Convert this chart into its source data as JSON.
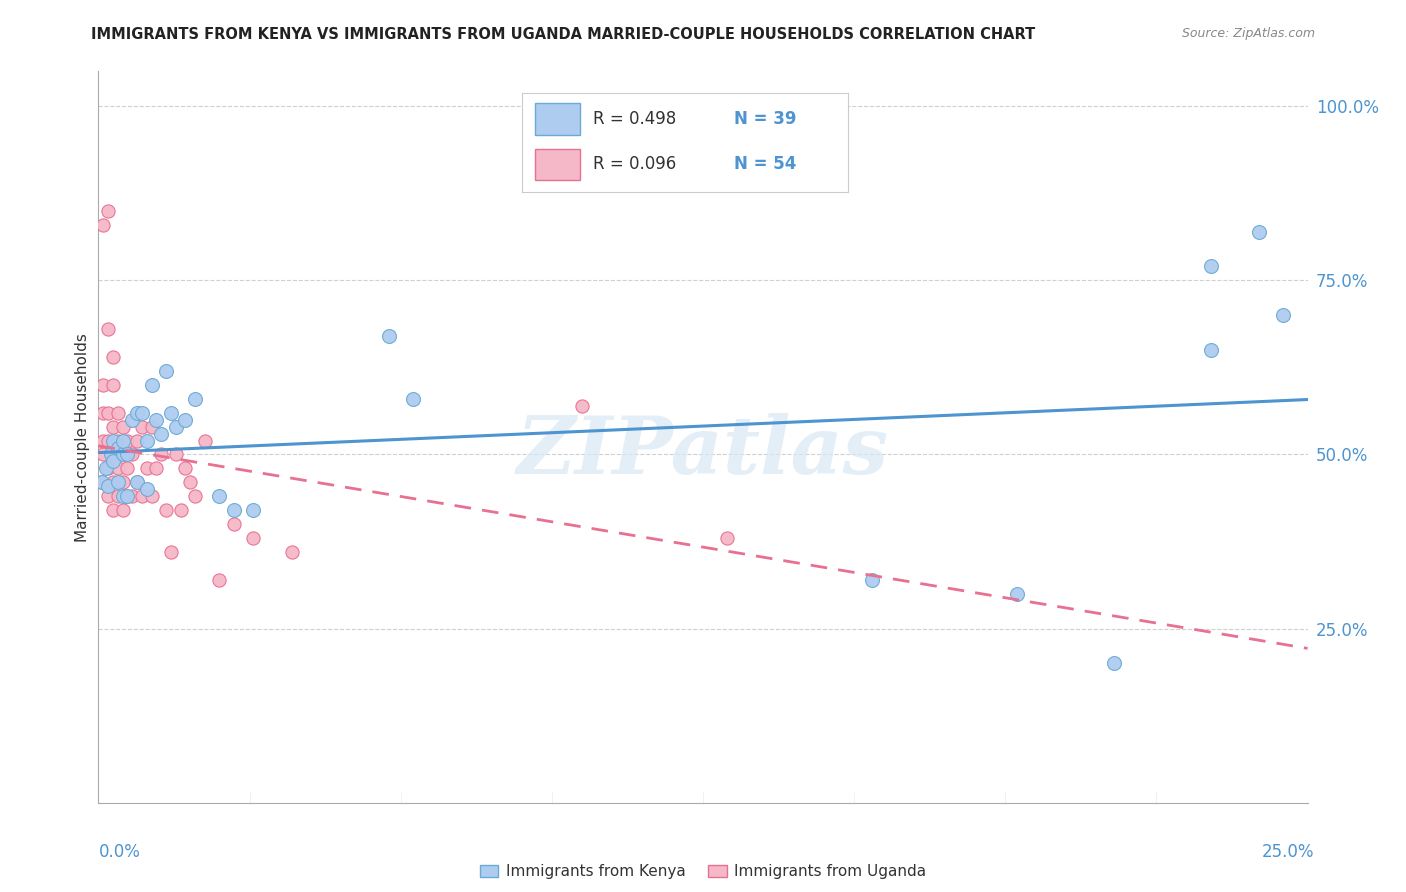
{
  "title": "IMMIGRANTS FROM KENYA VS IMMIGRANTS FROM UGANDA MARRIED-COUPLE HOUSEHOLDS CORRELATION CHART",
  "source": "Source: ZipAtlas.com",
  "ylabel": "Married-couple Households",
  "xlim": [
    0.0,
    0.25
  ],
  "ylim": [
    0.0,
    1.05
  ],
  "kenya_R": 0.498,
  "kenya_N": 39,
  "uganda_R": 0.096,
  "uganda_N": 54,
  "kenya_color": "#aeccf0",
  "kenya_edge_color": "#6aaad4",
  "uganda_color": "#f5b8c8",
  "uganda_edge_color": "#e87090",
  "trend_kenya_color": "#4d94d0",
  "trend_uganda_color": "#e87090",
  "watermark": "ZIPatlas",
  "background_color": "#ffffff",
  "grid_color": "#d0d0d0",
  "kenya_x": [
    0.0008,
    0.0015,
    0.002,
    0.0025,
    0.003,
    0.003,
    0.004,
    0.004,
    0.005,
    0.005,
    0.005,
    0.006,
    0.006,
    0.007,
    0.008,
    0.008,
    0.009,
    0.01,
    0.01,
    0.011,
    0.012,
    0.013,
    0.014,
    0.015,
    0.016,
    0.018,
    0.02,
    0.025,
    0.028,
    0.032,
    0.06,
    0.065,
    0.16,
    0.19,
    0.21,
    0.23,
    0.23,
    0.24,
    0.245
  ],
  "kenya_y": [
    0.46,
    0.48,
    0.455,
    0.5,
    0.49,
    0.52,
    0.51,
    0.46,
    0.5,
    0.44,
    0.52,
    0.44,
    0.5,
    0.55,
    0.46,
    0.56,
    0.56,
    0.45,
    0.52,
    0.6,
    0.55,
    0.53,
    0.62,
    0.56,
    0.54,
    0.55,
    0.58,
    0.44,
    0.42,
    0.42,
    0.67,
    0.58,
    0.32,
    0.3,
    0.2,
    0.77,
    0.65,
    0.82,
    0.7
  ],
  "uganda_x": [
    0.0005,
    0.001,
    0.001,
    0.001,
    0.001,
    0.002,
    0.002,
    0.002,
    0.002,
    0.003,
    0.003,
    0.003,
    0.003,
    0.003,
    0.004,
    0.004,
    0.004,
    0.004,
    0.005,
    0.005,
    0.005,
    0.005,
    0.006,
    0.006,
    0.006,
    0.007,
    0.007,
    0.008,
    0.008,
    0.009,
    0.009,
    0.01,
    0.011,
    0.011,
    0.012,
    0.013,
    0.014,
    0.015,
    0.016,
    0.017,
    0.018,
    0.019,
    0.02,
    0.022,
    0.025,
    0.028,
    0.032,
    0.04,
    0.1,
    0.13,
    0.001,
    0.002,
    0.002,
    0.003
  ],
  "uganda_y": [
    0.46,
    0.5,
    0.52,
    0.56,
    0.6,
    0.44,
    0.48,
    0.52,
    0.56,
    0.42,
    0.46,
    0.5,
    0.54,
    0.6,
    0.44,
    0.48,
    0.52,
    0.56,
    0.42,
    0.46,
    0.5,
    0.54,
    0.44,
    0.48,
    0.52,
    0.44,
    0.5,
    0.46,
    0.52,
    0.44,
    0.54,
    0.48,
    0.44,
    0.54,
    0.48,
    0.5,
    0.42,
    0.36,
    0.5,
    0.42,
    0.48,
    0.46,
    0.44,
    0.52,
    0.32,
    0.4,
    0.38,
    0.36,
    0.57,
    0.38,
    0.83,
    0.85,
    0.68,
    0.64
  ],
  "ytick_vals": [
    0.25,
    0.5,
    0.75,
    1.0
  ],
  "ytick_labels": [
    "25.0%",
    "50.0%",
    "75.0%",
    "100.0%"
  ],
  "xtick_vals": [
    0.0,
    0.03125,
    0.0625,
    0.09375,
    0.125,
    0.15625,
    0.1875,
    0.21875,
    0.25
  ],
  "legend_R_color": "#333333",
  "legend_N_color": "#4d94d0"
}
